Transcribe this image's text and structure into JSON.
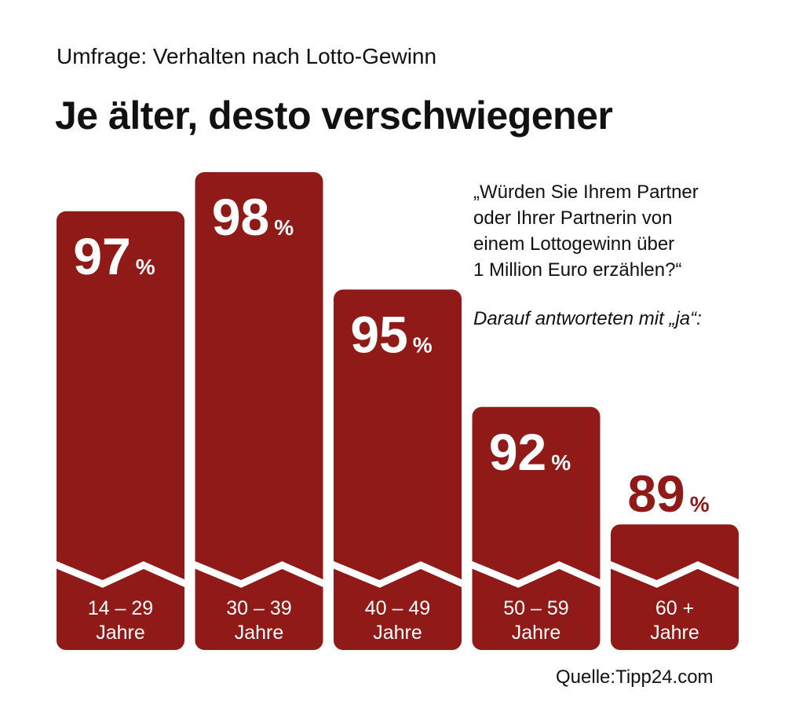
{
  "header": {
    "subtitle": "Umfrage:  Verhalten nach Lotto-Gewinn",
    "title": "Je älter, desto verschwiegener"
  },
  "question": [
    "„Würden Sie Ihrem Partner",
    "oder Ihrer Partnerin von",
    "einem Lottogewinn über",
    "1 Million Euro erzählen?“"
  ],
  "answer_note": "Darauf antworteten mit  „ja“:",
  "source": "Quelle:Tipp24.com",
  "chart_data": {
    "type": "bar",
    "categories": [
      [
        "14 – 29",
        "Jahre"
      ],
      [
        "30 – 39",
        "Jahre"
      ],
      [
        "40 – 49",
        "Jahre"
      ],
      [
        "50 – 59",
        "Jahre"
      ],
      [
        "60 +",
        "Jahre"
      ]
    ],
    "values": [
      97,
      98,
      95,
      92,
      89
    ],
    "value_suffix": "%",
    "axis_break": true,
    "bar_color": "#8f1a17",
    "label_color_outside": "#8f1a17"
  }
}
